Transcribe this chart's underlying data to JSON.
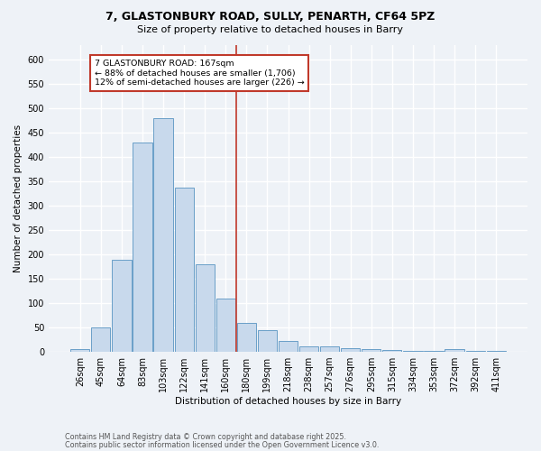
{
  "title1": "7, GLASTONBURY ROAD, SULLY, PENARTH, CF64 5PZ",
  "title2": "Size of property relative to detached houses in Barry",
  "xlabel": "Distribution of detached houses by size in Barry",
  "ylabel": "Number of detached properties",
  "bar_labels": [
    "26sqm",
    "45sqm",
    "64sqm",
    "83sqm",
    "103sqm",
    "122sqm",
    "141sqm",
    "160sqm",
    "180sqm",
    "199sqm",
    "218sqm",
    "238sqm",
    "257sqm",
    "276sqm",
    "295sqm",
    "315sqm",
    "334sqm",
    "353sqm",
    "372sqm",
    "392sqm",
    "411sqm"
  ],
  "bar_values": [
    5,
    50,
    190,
    430,
    480,
    337,
    180,
    110,
    60,
    45,
    22,
    12,
    12,
    7,
    5,
    4,
    2,
    2,
    5,
    2,
    2
  ],
  "bar_color": "#c8d9ec",
  "bar_edge_color": "#6a9fc8",
  "vline_x": 7.5,
  "vline_color": "#c0392b",
  "annotation_text": "7 GLASTONBURY ROAD: 167sqm\n← 88% of detached houses are smaller (1,706)\n12% of semi-detached houses are larger (226) →",
  "annotation_box_color": "#ffffff",
  "annotation_box_edge": "#c0392b",
  "ylim": [
    0,
    630
  ],
  "yticks": [
    0,
    50,
    100,
    150,
    200,
    250,
    300,
    350,
    400,
    450,
    500,
    550,
    600
  ],
  "footer1": "Contains HM Land Registry data © Crown copyright and database right 2025.",
  "footer2": "Contains public sector information licensed under the Open Government Licence v3.0.",
  "bg_color": "#eef2f7",
  "grid_color": "#ffffff"
}
